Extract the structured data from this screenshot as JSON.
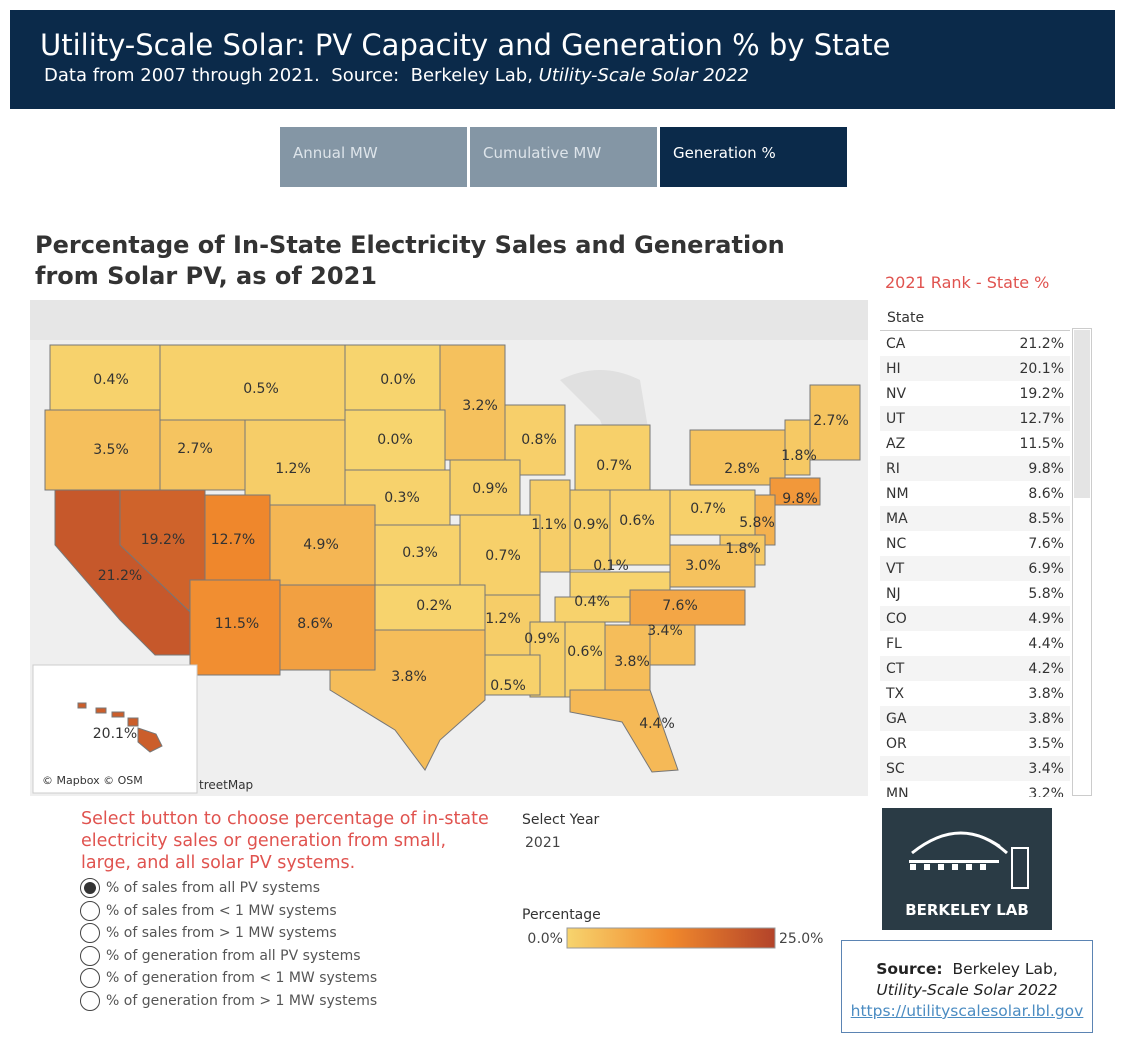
{
  "header": {
    "title": "Utility-Scale Solar: PV Capacity and Generation % by State",
    "subtitle": "Data from 2007 through 2021.  Source:  Berkeley Lab, ",
    "subtitle_italic": "Utility-Scale Solar 2022"
  },
  "tabs": {
    "items": [
      "Annual MW",
      "Cumulative MW",
      "Generation %"
    ],
    "active": 2
  },
  "map": {
    "title": "Percentage of In-State Electricity Sales and Generation from Solar PV, as of 2021",
    "attribution": "© Mapbox © OSM",
    "attribution_clipped": "treetMap",
    "regions": [
      {
        "value": 0.4,
        "label": "0.4%"
      },
      {
        "value": 0.5,
        "label": "0.5%"
      },
      {
        "value": 0.0,
        "label": "0.0%"
      },
      {
        "value": 3.2,
        "label": "3.2%"
      },
      {
        "value": 0.8,
        "label": "0.8%"
      },
      {
        "value": 2.7,
        "label": "2.7%"
      },
      {
        "value": 3.5,
        "label": "3.5%"
      },
      {
        "value": 2.7,
        "label": "2.7%"
      },
      {
        "value": 0.0,
        "label": "0.0%"
      },
      {
        "value": 1.2,
        "label": "1.2%"
      },
      {
        "value": 0.7,
        "label": "0.7%"
      },
      {
        "value": 2.8,
        "label": "2.8%"
      },
      {
        "value": 1.8,
        "label": "1.8%"
      },
      {
        "value": 9.8,
        "label": "9.8%"
      },
      {
        "value": 0.9,
        "label": "0.9%"
      },
      {
        "value": 0.3,
        "label": "0.3%"
      },
      {
        "value": 1.1,
        "label": "1.1%"
      },
      {
        "value": 0.9,
        "label": "0.9%"
      },
      {
        "value": 0.6,
        "label": "0.6%"
      },
      {
        "value": 0.7,
        "label": "0.7%"
      },
      {
        "value": 5.8,
        "label": "5.8%"
      },
      {
        "value": 19.2,
        "label": "19.2%"
      },
      {
        "value": 12.7,
        "label": "12.7%"
      },
      {
        "value": 4.9,
        "label": "4.9%"
      },
      {
        "value": 0.3,
        "label": "0.3%"
      },
      {
        "value": 0.7,
        "label": "0.7%"
      },
      {
        "value": 1.8,
        "label": "1.8%"
      },
      {
        "value": 0.1,
        "label": "0.1%"
      },
      {
        "value": 3.0,
        "label": "3.0%"
      },
      {
        "value": 21.2,
        "label": "21.2%"
      },
      {
        "value": 7.6,
        "label": "7.6%"
      },
      {
        "value": 0.4,
        "label": "0.4%"
      },
      {
        "value": 0.2,
        "label": "0.2%"
      },
      {
        "value": 1.2,
        "label": "1.2%"
      },
      {
        "value": 11.5,
        "label": "11.5%"
      },
      {
        "value": 8.6,
        "label": "8.6%"
      },
      {
        "value": 3.4,
        "label": "3.4%"
      },
      {
        "value": 0.9,
        "label": "0.9%"
      },
      {
        "value": 0.6,
        "label": "0.6%"
      },
      {
        "value": 3.8,
        "label": "3.8%"
      },
      {
        "value": 3.8,
        "label": "3.8%"
      },
      {
        "value": 0.5,
        "label": "0.5%"
      },
      {
        "value": 4.4,
        "label": "4.4%"
      },
      {
        "value": 20.1,
        "label": "20.1%"
      }
    ]
  },
  "legend": {
    "title": "Percentage",
    "range": [
      {
        "value": 0,
        "label": "0.0%"
      },
      {
        "value": 25,
        "label": "25.0%"
      }
    ],
    "colors": [
      "#f7d46e",
      "#f0882c",
      "#b3432a"
    ]
  },
  "rank": {
    "title": "2021 Rank - State %",
    "header": "State",
    "rows": [
      [
        "CA",
        "21.2%"
      ],
      [
        "HI",
        "20.1%"
      ],
      [
        "NV",
        "19.2%"
      ],
      [
        "UT",
        "12.7%"
      ],
      [
        "AZ",
        "11.5%"
      ],
      [
        "RI",
        "9.8%"
      ],
      [
        "NM",
        "8.6%"
      ],
      [
        "MA",
        "8.5%"
      ],
      [
        "NC",
        "7.6%"
      ],
      [
        "VT",
        "6.9%"
      ],
      [
        "NJ",
        "5.8%"
      ],
      [
        "CO",
        "4.9%"
      ],
      [
        "FL",
        "4.4%"
      ],
      [
        "CT",
        "4.2%"
      ],
      [
        "TX",
        "3.8%"
      ],
      [
        "GA",
        "3.8%"
      ],
      [
        "OR",
        "3.5%"
      ],
      [
        "SC",
        "3.4%"
      ],
      [
        "MN",
        "3.2%"
      ]
    ]
  },
  "controls": {
    "instructions": "Select button to choose percentage of in-state electricity sales or generation from small, large, and all solar PV systems.",
    "options": [
      "% of sales from all PV systems",
      "% of sales from < 1 MW systems",
      "% of sales from > 1 MW systems",
      "% of generation from all PV systems",
      "% of generation from < 1 MW systems",
      "% of generation from > 1 MW systems"
    ],
    "selected": 0,
    "year_label": "Select Year",
    "year": "2021"
  },
  "logo": "BERKELEY LAB",
  "source": {
    "label": "Source:",
    "org": "Berkeley Lab,",
    "report": "Utility-Scale Solar 2022",
    "url": "https://utilityscalesolar.lbl.gov"
  }
}
